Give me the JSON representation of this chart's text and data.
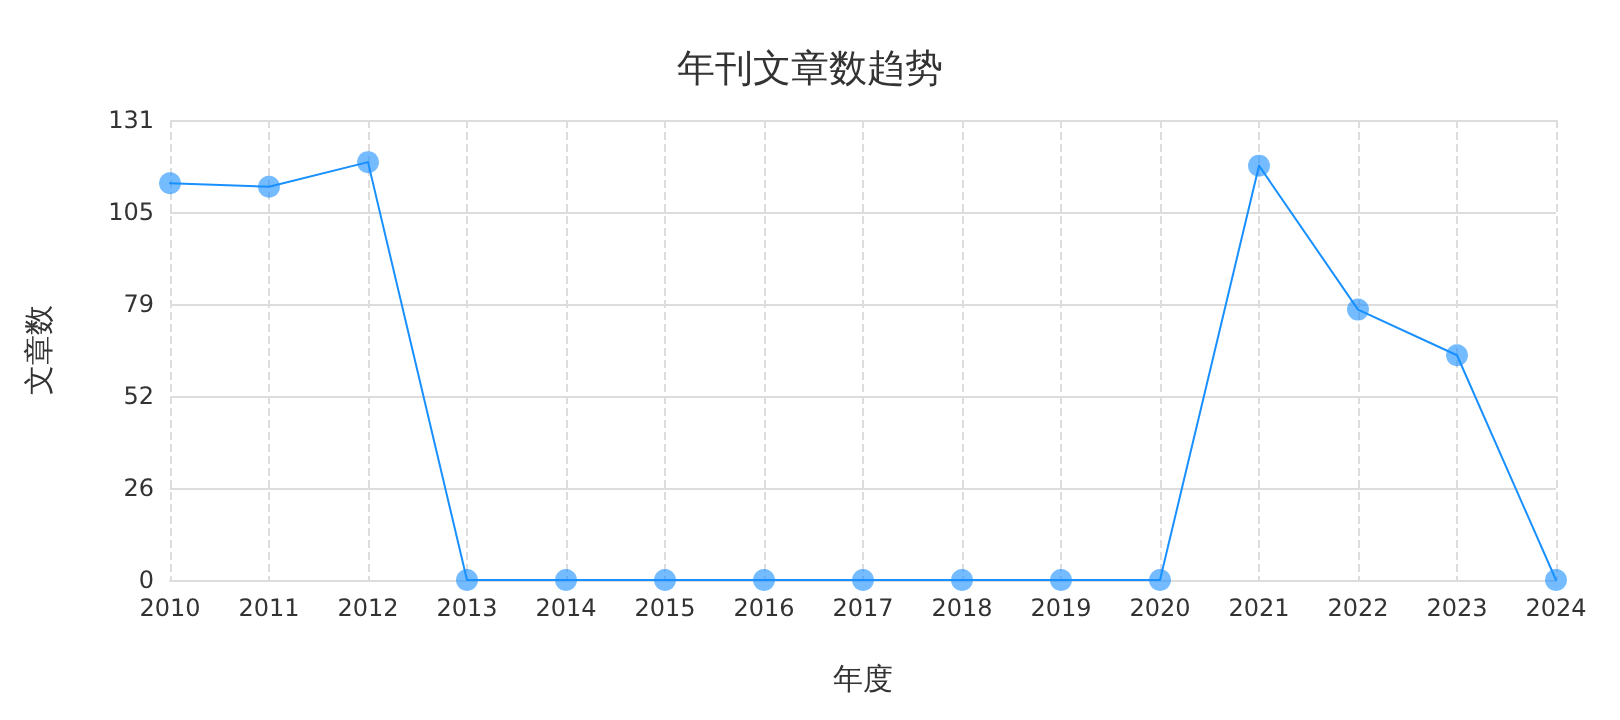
{
  "chart_data": {
    "type": "line",
    "title": "年刊文章数趋势",
    "xlabel": "年度",
    "ylabel": "文章数",
    "categories": [
      "2010",
      "2011",
      "2012",
      "2013",
      "2014",
      "2015",
      "2016",
      "2017",
      "2018",
      "2019",
      "2020",
      "2021",
      "2022",
      "2023",
      "2024"
    ],
    "series": [
      {
        "color": "#1890ff",
        "values": [
          113,
          112,
          119,
          0,
          0,
          0,
          0,
          0,
          0,
          0,
          0,
          118,
          77,
          64,
          0
        ]
      }
    ],
    "ylim": [
      0,
      131
    ],
    "yticks": [
      0,
      {
        "value": 26.2,
        "label": "26"
      },
      {
        "value": 52.4,
        "label": "52"
      },
      {
        "value": 78.6,
        "label": "79"
      },
      {
        "value": 104.8,
        "label": "105"
      },
      131
    ],
    "grid": true,
    "marker": "circle",
    "line_style": "solid"
  }
}
